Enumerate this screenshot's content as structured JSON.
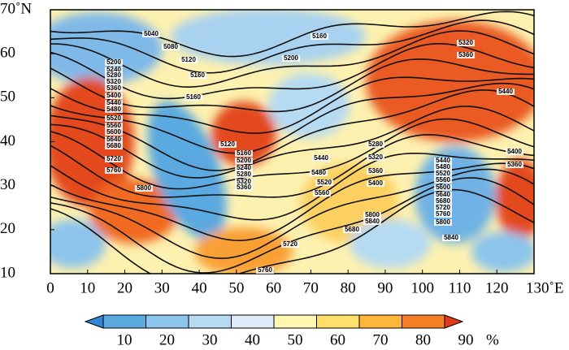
{
  "map": {
    "x_ticks": [
      "0",
      "10",
      "20",
      "30",
      "40",
      "50",
      "60",
      "70",
      "80",
      "90",
      "100",
      "110",
      "120",
      "130˚E"
    ],
    "y_ticks": [
      "10",
      "20",
      "30",
      "40",
      "50",
      "60",
      "70˚N"
    ],
    "contour_labels": [
      "5040",
      "5080",
      "5120",
      "5160",
      "5160",
      "5200",
      "5160",
      "5200",
      "5240",
      "5280",
      "5320",
      "5360",
      "5400",
      "5440",
      "5480",
      "5520",
      "5560",
      "5600",
      "5640",
      "5680",
      "5720",
      "5760",
      "5800",
      "5120",
      "5160",
      "5200",
      "5240",
      "5280",
      "5320",
      "5360",
      "5440",
      "5480",
      "5520",
      "5560",
      "5280",
      "5320",
      "5360",
      "5400",
      "5800",
      "5840",
      "5680",
      "5720",
      "5760",
      "5320",
      "5360",
      "5440",
      "5400",
      "5360",
      "5440",
      "5480",
      "5520",
      "5560",
      "5600",
      "5640",
      "5680",
      "5720",
      "5760",
      "5800",
      "5840"
    ],
    "colorbar": {
      "labels": [
        "10",
        "20",
        "30",
        "40",
        "50",
        "60",
        "70",
        "80",
        "90"
      ],
      "unit": "%"
    }
  }
}
